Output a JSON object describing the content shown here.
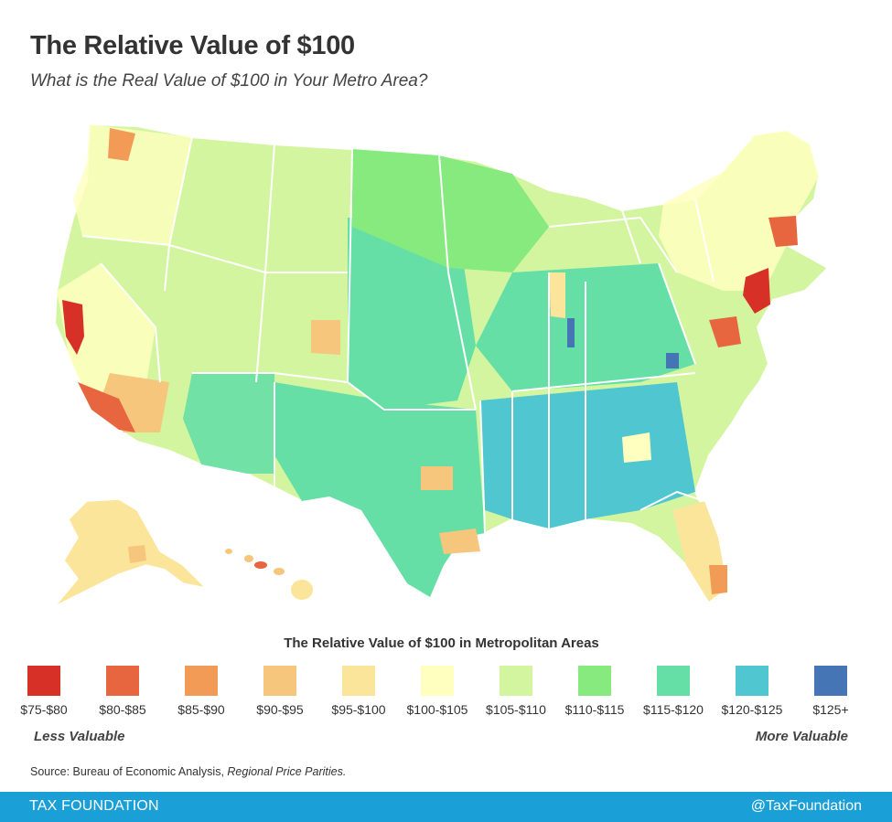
{
  "title": "The Relative Value of $100",
  "subtitle": "What is the Real Value of $100 in Your Metro Area?",
  "legend": {
    "title": "The Relative Value of $100 in Metropolitan Areas",
    "items": [
      {
        "label": "$75-$80",
        "color": "#d73027"
      },
      {
        "label": "$80-$85",
        "color": "#e8663f"
      },
      {
        "label": "$85-$90",
        "color": "#f29b57"
      },
      {
        "label": "$90-$95",
        "color": "#f6c67c"
      },
      {
        "label": "$95-$100",
        "color": "#fbe59b"
      },
      {
        "label": "$100-$105",
        "color": "#ffffbf"
      },
      {
        "label": "$105-$110",
        "color": "#d3f5a0"
      },
      {
        "label": "$110-$115",
        "color": "#86ea7e"
      },
      {
        "label": "$115-$120",
        "color": "#66dfa6"
      },
      {
        "label": "$120-$125",
        "color": "#4fc6d0"
      },
      {
        "label": "$125+",
        "color": "#4575b4"
      }
    ],
    "low_label": "Less Valuable",
    "high_label": "More Valuable"
  },
  "source": {
    "prefix": "Source: Bureau of Economic Analysis, ",
    "publication": "Regional Price Parities."
  },
  "footer": {
    "brand": "TAX FOUNDATION",
    "handle": "@TaxFoundation",
    "color": "#1a9fd6"
  }
}
